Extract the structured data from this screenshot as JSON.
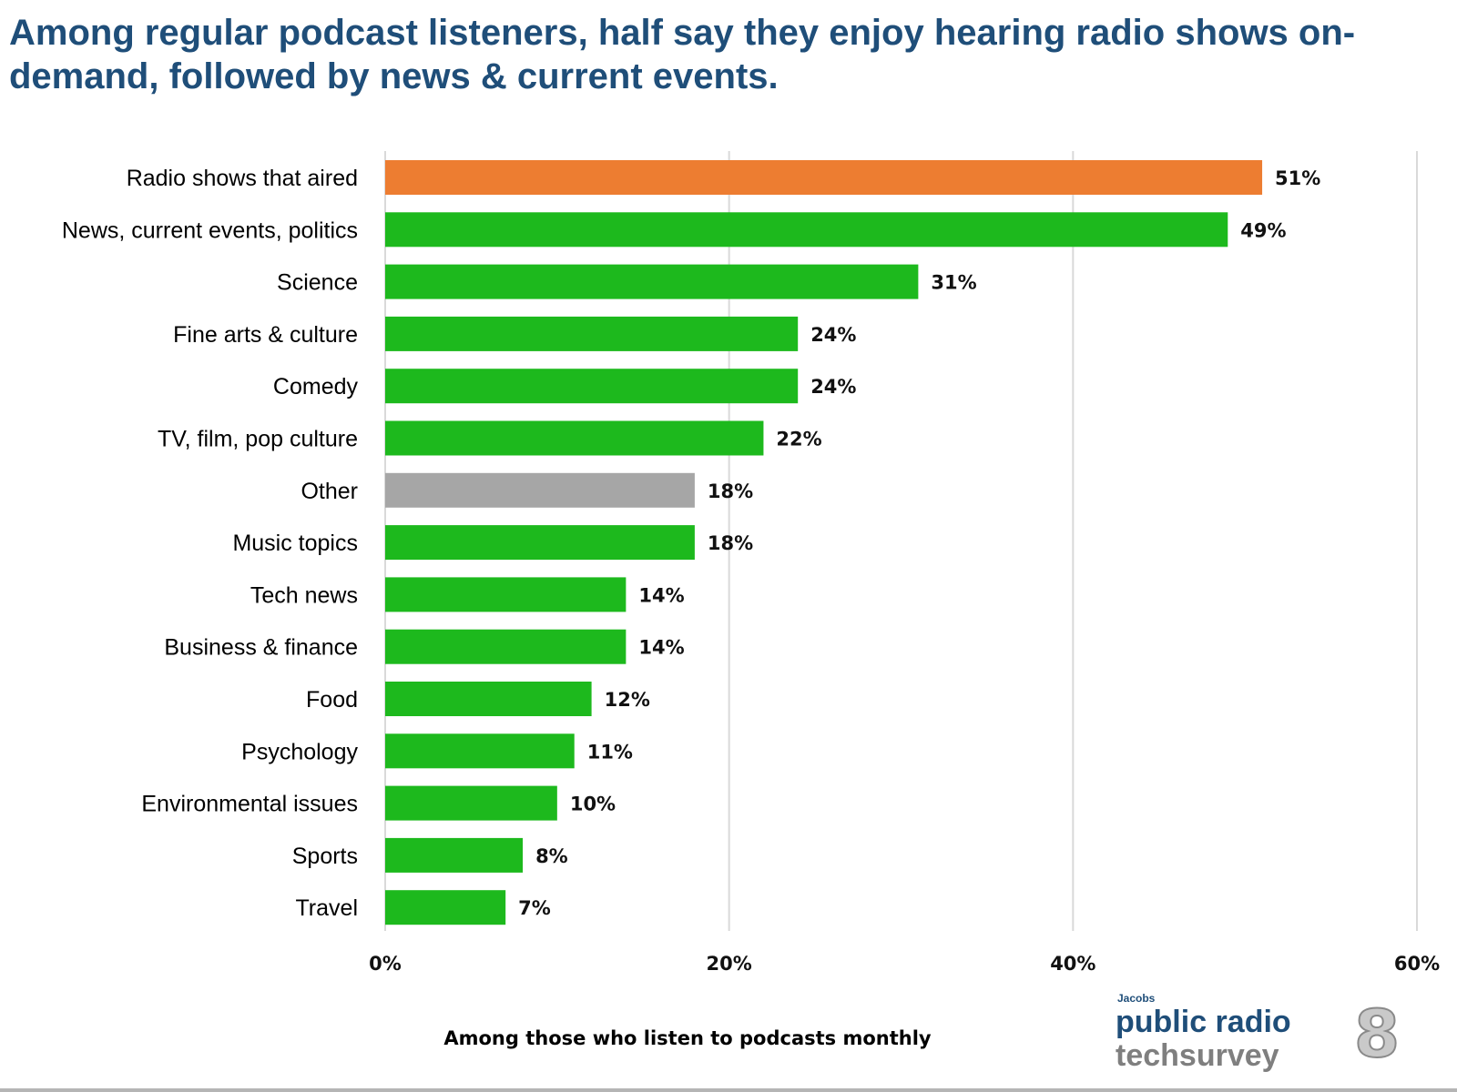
{
  "title": "Among regular podcast listeners, half say they enjoy hearing radio shows on-demand, followed by news & current events.",
  "chart_data": {
    "type": "bar",
    "orientation": "horizontal",
    "categories": [
      "Radio shows that aired",
      "News, current events, politics",
      "Science",
      "Fine arts & culture",
      "Comedy",
      "TV, film, pop culture",
      "Other",
      "Music topics",
      "Tech news",
      "Business & finance",
      "Food",
      "Psychology",
      "Environmental issues",
      "Sports",
      "Travel"
    ],
    "values": [
      51,
      49,
      31,
      24,
      24,
      22,
      18,
      18,
      14,
      14,
      12,
      11,
      10,
      8,
      7
    ],
    "data_labels": [
      "51%",
      "49%",
      "31%",
      "24%",
      "24%",
      "22%",
      "18%",
      "18%",
      "14%",
      "14%",
      "12%",
      "11%",
      "10%",
      "8%",
      "7%"
    ],
    "colors": [
      "#ed7d31",
      "#1db91d",
      "#1db91d",
      "#1db91d",
      "#1db91d",
      "#1db91d",
      "#a6a6a6",
      "#1db91d",
      "#1db91d",
      "#1db91d",
      "#1db91d",
      "#1db91d",
      "#1db91d",
      "#1db91d",
      "#1db91d"
    ],
    "xlim": [
      0,
      60
    ],
    "xticks": [
      0,
      20,
      40,
      60
    ],
    "xtick_labels": [
      "0%",
      "20%",
      "40%",
      "60%"
    ],
    "grid": "vertical",
    "xlabel": "Among those who listen to podcasts monthly"
  },
  "logo": {
    "small": "Jacobs",
    "line1": "public radio",
    "line2": "techsurvey",
    "number": "8"
  }
}
